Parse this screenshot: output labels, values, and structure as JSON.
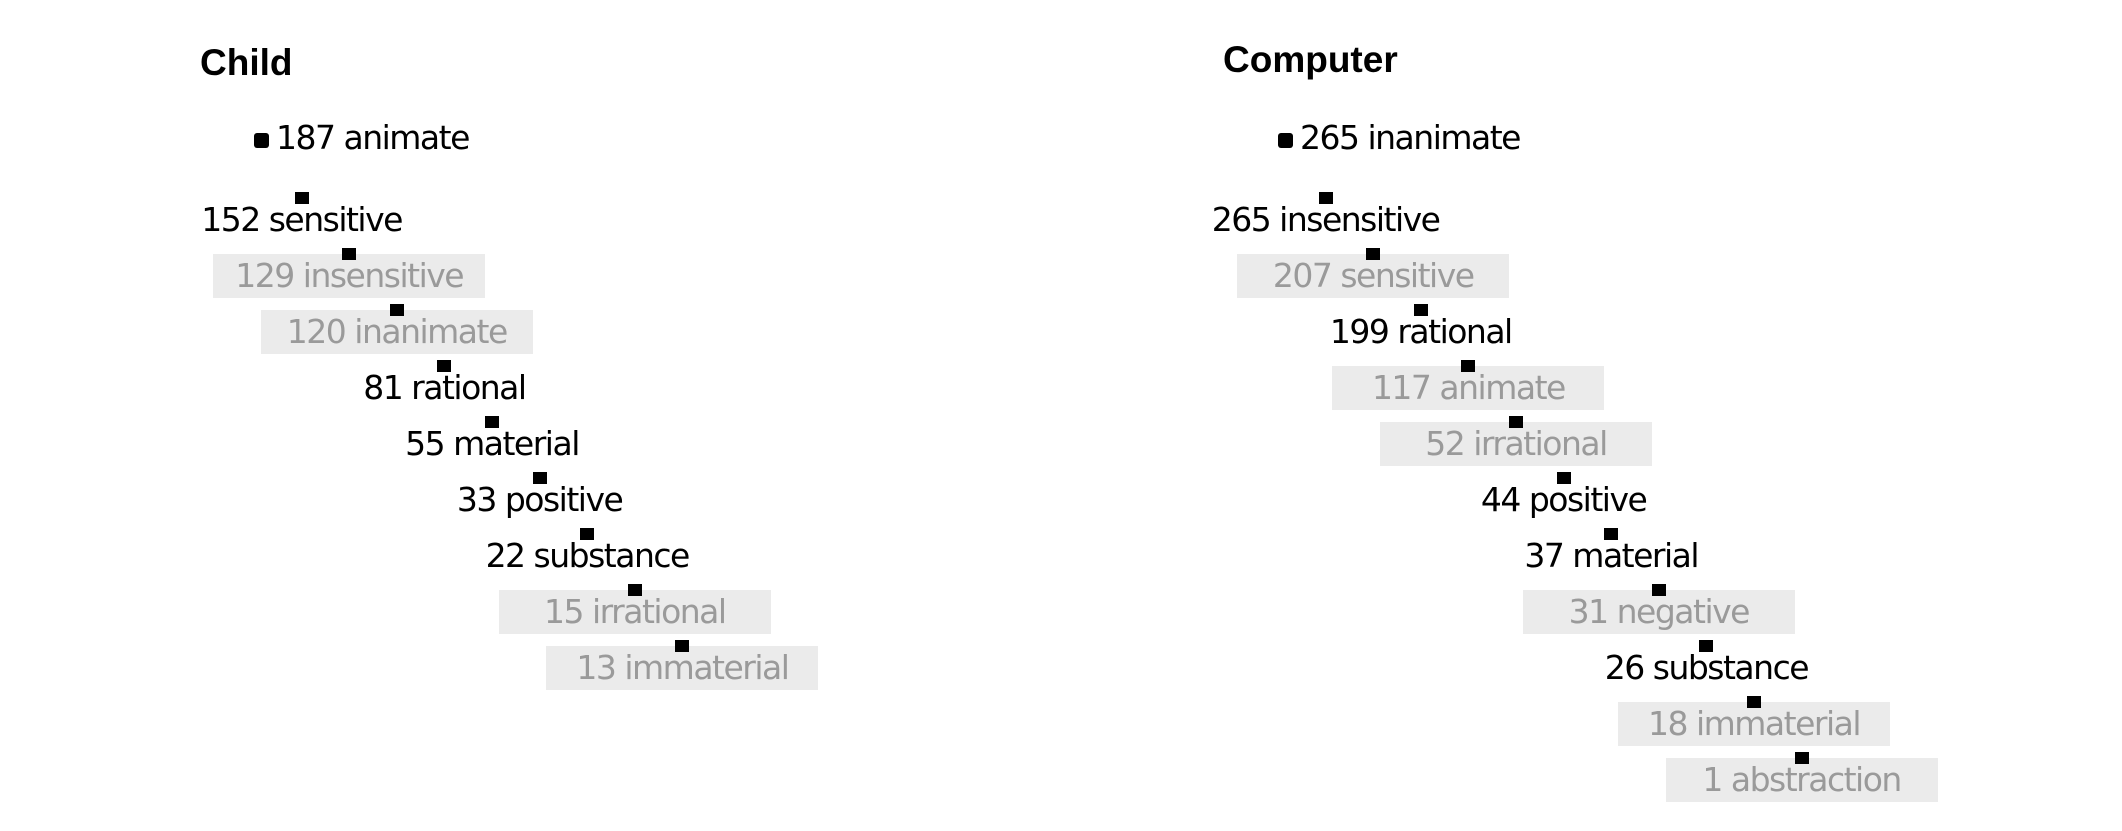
{
  "panels": [
    {
      "title": "Child",
      "nodes": [
        {
          "count": "187",
          "word": "animate",
          "highlight": true
        },
        {
          "count": "152",
          "word": "sensitive",
          "highlight": true
        },
        {
          "count": "129",
          "word": "insensitive",
          "highlight": false
        },
        {
          "count": "120",
          "word": "inanimate",
          "highlight": false
        },
        {
          "count": "81",
          "word": "rational",
          "highlight": true
        },
        {
          "count": "55",
          "word": "material",
          "highlight": true
        },
        {
          "count": "33",
          "word": "positive",
          "highlight": true
        },
        {
          "count": "22",
          "word": "substance",
          "highlight": true
        },
        {
          "count": "15",
          "word": "irrational",
          "highlight": false
        },
        {
          "count": "13",
          "word": "immaterial",
          "highlight": false
        }
      ]
    },
    {
      "title": "Computer",
      "nodes": [
        {
          "count": "265",
          "word": "inanimate",
          "highlight": true
        },
        {
          "count": "265",
          "word": "insensitive",
          "highlight": true
        },
        {
          "count": "207",
          "word": "sensitive",
          "highlight": false
        },
        {
          "count": "199",
          "word": "rational",
          "highlight": true
        },
        {
          "count": "117",
          "word": "animate",
          "highlight": false
        },
        {
          "count": "52",
          "word": "irrational",
          "highlight": false
        },
        {
          "count": "44",
          "word": "positive",
          "highlight": true
        },
        {
          "count": "37",
          "word": "material",
          "highlight": true
        },
        {
          "count": "31",
          "word": "negative",
          "highlight": false
        },
        {
          "count": "26",
          "word": "substance",
          "highlight": true
        },
        {
          "count": "18",
          "word": "immaterial",
          "highlight": false
        },
        {
          "count": "1",
          "word": "abstraction",
          "highlight": false
        }
      ]
    }
  ]
}
